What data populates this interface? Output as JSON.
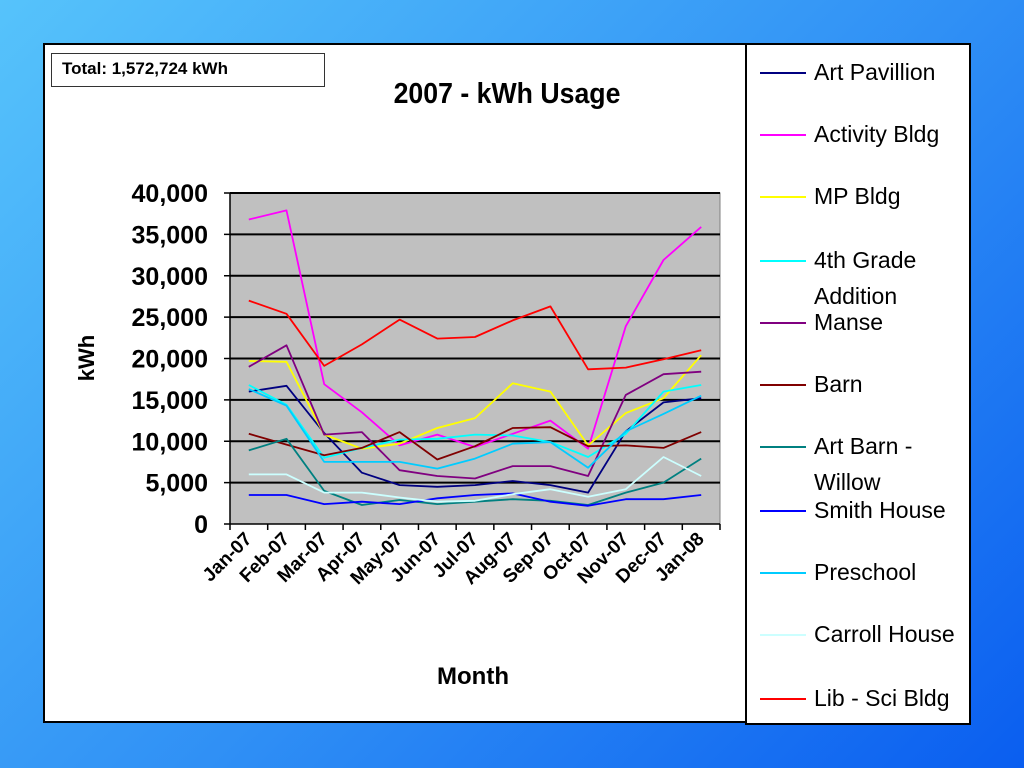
{
  "total_label": "Total: 1,572,724 kWh",
  "chart_data": {
    "type": "line",
    "title": "2007 - kWh Usage",
    "xlabel": "Month",
    "ylabel": "kWh",
    "ylim": [
      0,
      40000
    ],
    "yticks": [
      "0",
      "5,000",
      "10,000",
      "15,000",
      "20,000",
      "25,000",
      "30,000",
      "35,000",
      "40,000"
    ],
    "categories": [
      "Jan-07",
      "Feb-07",
      "Mar-07",
      "Apr-07",
      "May-07",
      "Jun-07",
      "Jul-07",
      "Aug-07",
      "Sep-07",
      "Oct-07",
      "Nov-07",
      "Dec-07",
      "Jan-08"
    ],
    "plot_background": "#c0c0c0",
    "grid": true,
    "legend_position": "right",
    "series": [
      {
        "name": "Art Pavillion",
        "color": "#000080",
        "values": [
          16000,
          16700,
          11000,
          6200,
          4700,
          4500,
          4700,
          5200,
          4700,
          3800,
          11200,
          14700,
          15200
        ]
      },
      {
        "name": "Activity Bldg",
        "color": "#ff00ff",
        "values": [
          36800,
          37900,
          16900,
          13500,
          9500,
          10800,
          9300,
          10900,
          12500,
          9100,
          23900,
          31900,
          35900
        ]
      },
      {
        "name": "MP Bldg",
        "color": "#ffff00",
        "values": [
          19700,
          19600,
          10800,
          9100,
          9700,
          11600,
          12800,
          17000,
          16000,
          9500,
          13400,
          15200,
          20400
        ]
      },
      {
        "name": "4th Grade Addition",
        "color": "#00ffff",
        "values": [
          16800,
          14400,
          8000,
          9200,
          10200,
          10300,
          10800,
          10700,
          9900,
          8100,
          10900,
          16000,
          16800
        ]
      },
      {
        "name": "Manse",
        "color": "#800080",
        "values": [
          19000,
          21600,
          10800,
          11100,
          6500,
          5800,
          5500,
          7000,
          7000,
          5800,
          15600,
          18100,
          18400
        ]
      },
      {
        "name": "Barn",
        "color": "#800000",
        "values": [
          10900,
          9600,
          8300,
          9200,
          11100,
          7800,
          9400,
          11600,
          11700,
          9400,
          9500,
          9200,
          11100
        ]
      },
      {
        "name": "Art Barn - Willow",
        "color": "#008080",
        "values": [
          8900,
          10300,
          4000,
          2300,
          2900,
          2400,
          2700,
          3000,
          2800,
          2300,
          3800,
          5000,
          7900
        ]
      },
      {
        "name": "Smith House",
        "color": "#0000ff",
        "values": [
          3500,
          3500,
          2400,
          2700,
          2400,
          3100,
          3500,
          3700,
          2700,
          2200,
          3000,
          3000,
          3500
        ]
      },
      {
        "name": "Preschool",
        "color": "#00ccff",
        "values": [
          16300,
          14300,
          7500,
          7500,
          7500,
          6700,
          7900,
          9700,
          9900,
          6800,
          11200,
          13300,
          15500
        ]
      },
      {
        "name": "Carroll House",
        "color": "#ccffff",
        "values": [
          6000,
          6000,
          3800,
          3800,
          3200,
          2700,
          2800,
          3600,
          4200,
          3300,
          4200,
          8100,
          5800
        ]
      },
      {
        "name": "Lib - Sci Bldg",
        "color": "#ff0000",
        "values": [
          27000,
          25400,
          19100,
          21700,
          24700,
          22400,
          22600,
          24600,
          26300,
          18700,
          18900,
          19900,
          21000
        ]
      }
    ]
  }
}
